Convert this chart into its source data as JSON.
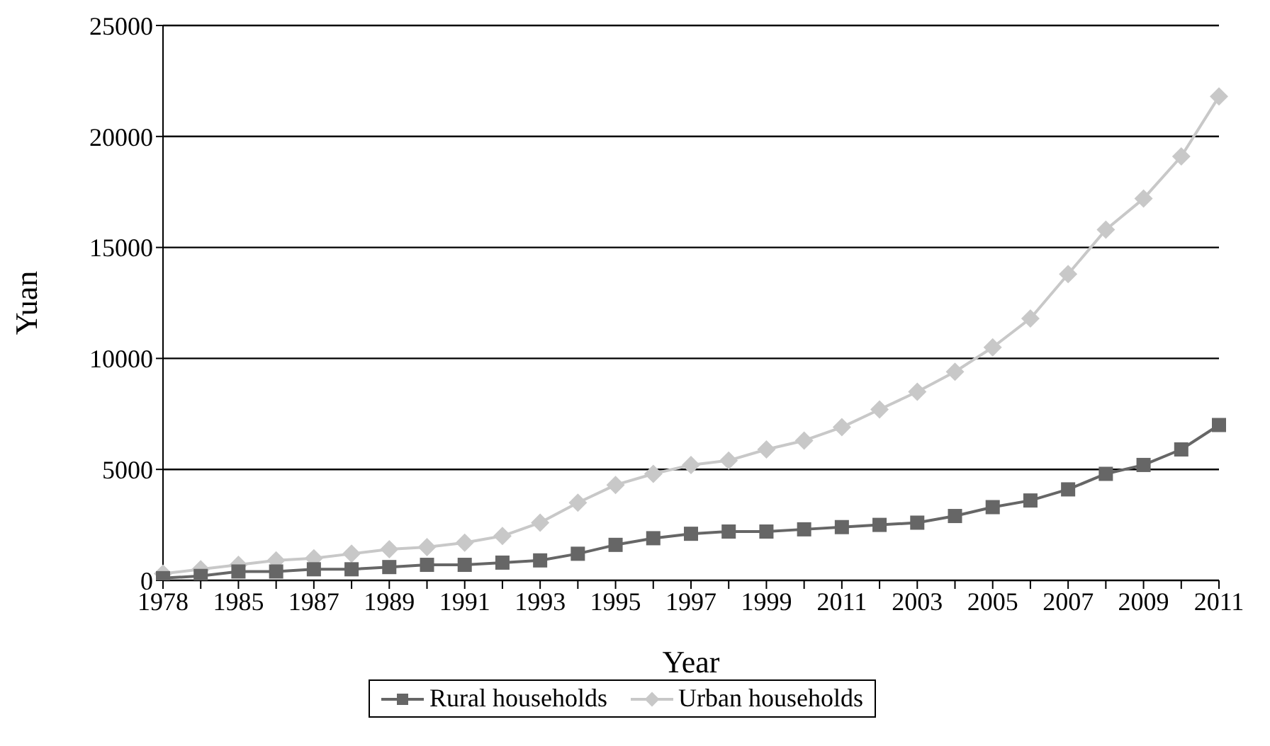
{
  "chart_data": {
    "type": "line",
    "xlabel": "Year",
    "ylabel": "Yuan",
    "categories": [
      "1978",
      null,
      "1985",
      null,
      "1987",
      null,
      "1989",
      null,
      "1991",
      null,
      "1993",
      null,
      "1995",
      null,
      "1997",
      null,
      "1999",
      null,
      "2011",
      null,
      "2003",
      null,
      "2005",
      null,
      "2007",
      null,
      "2009",
      null,
      "2011"
    ],
    "series": [
      {
        "name": "Rural households",
        "color": "#666666",
        "marker": "square",
        "values": [
          100,
          200,
          400,
          400,
          500,
          500,
          600,
          700,
          700,
          800,
          900,
          1200,
          1600,
          1900,
          2100,
          2200,
          2200,
          2300,
          2400,
          2500,
          2600,
          2900,
          3300,
          3600,
          4100,
          4800,
          5200,
          5900,
          7000
        ]
      },
      {
        "name": "Urban households",
        "color": "#c8c8c8",
        "marker": "diamond",
        "values": [
          300,
          500,
          700,
          900,
          1000,
          1200,
          1400,
          1500,
          1700,
          2000,
          2600,
          3500,
          4300,
          4800,
          5200,
          5400,
          5900,
          6300,
          6900,
          7700,
          8500,
          9400,
          10500,
          11800,
          13800,
          15800,
          17200,
          19100,
          21800
        ]
      }
    ],
    "ylim": [
      0,
      25000
    ],
    "yticks": [
      0,
      5000,
      10000,
      15000,
      20000,
      25000
    ],
    "grid": "y",
    "legend": "bottom"
  }
}
